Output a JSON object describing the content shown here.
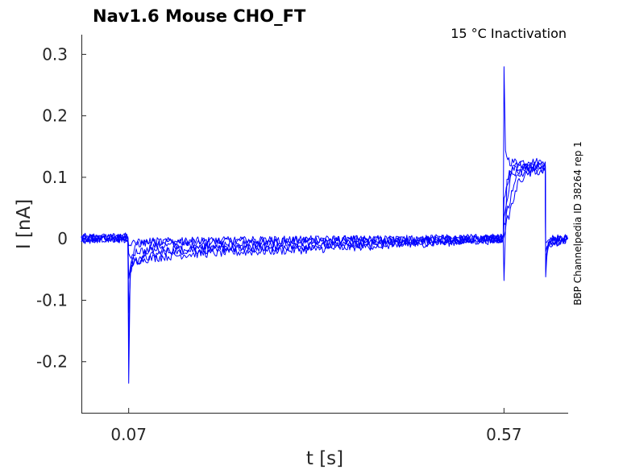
{
  "chart_data": {
    "type": "line",
    "title": "Nav1.6  Mouse  CHO_FT",
    "subtitle": "15 °C  Inactivation",
    "side_label": "BBP Channelpedia ID 38264 rep 1",
    "xlabel": "t [s]",
    "ylabel": "I [nA]",
    "xlim": [
      0.007,
      0.6555
    ],
    "ylim": [
      -0.283,
      0.332
    ],
    "x_ticks": [
      0.07,
      0.57
    ],
    "x_tick_labels": [
      "0.07",
      "0.57"
    ],
    "y_ticks": [
      0.3,
      0.2,
      0.1,
      0,
      -0.1,
      -0.2
    ],
    "y_tick_labels": [
      "0.3",
      "0.2",
      "0.1",
      "0",
      "-0.1",
      "-0.2"
    ],
    "grid": false,
    "line_color": "#0000ff",
    "protocol": {
      "prepulse_start": 0.07,
      "test_start": 0.57,
      "test_end": 0.6255
    },
    "series": [
      {
        "values": [
          [
            0.007,
            0.002
          ],
          [
            0.069,
            0.003
          ],
          [
            0.07,
            -0.235
          ],
          [
            0.072,
            -0.06
          ],
          [
            0.08,
            -0.005
          ],
          [
            0.56,
            0.001
          ],
          [
            0.569,
            0.001
          ],
          [
            0.57,
            0.28
          ],
          [
            0.572,
            0.14
          ],
          [
            0.578,
            0.125
          ],
          [
            0.625,
            0.125
          ],
          [
            0.6255,
            -0.062
          ],
          [
            0.628,
            -0.01
          ],
          [
            0.655,
            0.0
          ]
        ]
      },
      {
        "values": [
          [
            0.007,
            0.001
          ],
          [
            0.069,
            0.002
          ],
          [
            0.07,
            -0.18
          ],
          [
            0.072,
            -0.05
          ],
          [
            0.1,
            -0.012
          ],
          [
            0.3,
            -0.006
          ],
          [
            0.56,
            0.0
          ],
          [
            0.569,
            0.0
          ],
          [
            0.57,
            -0.068
          ],
          [
            0.574,
            0.1
          ],
          [
            0.585,
            0.12
          ],
          [
            0.625,
            0.12
          ],
          [
            0.6255,
            -0.05
          ],
          [
            0.628,
            -0.008
          ],
          [
            0.655,
            0.0
          ]
        ]
      },
      {
        "values": [
          [
            0.007,
            0.0
          ],
          [
            0.069,
            0.001
          ],
          [
            0.07,
            -0.12
          ],
          [
            0.073,
            -0.04
          ],
          [
            0.12,
            -0.02
          ],
          [
            0.3,
            -0.012
          ],
          [
            0.56,
            -0.001
          ],
          [
            0.569,
            -0.001
          ],
          [
            0.57,
            0.06
          ],
          [
            0.578,
            0.11
          ],
          [
            0.59,
            0.118
          ],
          [
            0.625,
            0.118
          ],
          [
            0.6255,
            -0.04
          ],
          [
            0.629,
            -0.006
          ],
          [
            0.655,
            0.0
          ]
        ]
      },
      {
        "values": [
          [
            0.007,
            -0.001
          ],
          [
            0.069,
            0.0
          ],
          [
            0.07,
            -0.06
          ],
          [
            0.075,
            -0.035
          ],
          [
            0.15,
            -0.025
          ],
          [
            0.3,
            -0.018
          ],
          [
            0.45,
            -0.008
          ],
          [
            0.56,
            -0.002
          ],
          [
            0.569,
            -0.002
          ],
          [
            0.57,
            0.04
          ],
          [
            0.58,
            0.105
          ],
          [
            0.6,
            0.115
          ],
          [
            0.625,
            0.115
          ],
          [
            0.6255,
            -0.03
          ],
          [
            0.63,
            -0.004
          ],
          [
            0.655,
            0.0
          ]
        ]
      },
      {
        "values": [
          [
            0.007,
            0.001
          ],
          [
            0.069,
            0.001
          ],
          [
            0.07,
            -0.03
          ],
          [
            0.08,
            -0.02
          ],
          [
            0.2,
            -0.015
          ],
          [
            0.4,
            -0.01
          ],
          [
            0.56,
            0.0
          ],
          [
            0.569,
            0.0
          ],
          [
            0.57,
            0.02
          ],
          [
            0.585,
            0.1
          ],
          [
            0.605,
            0.112
          ],
          [
            0.625,
            0.112
          ],
          [
            0.6255,
            -0.02
          ],
          [
            0.632,
            -0.002
          ],
          [
            0.655,
            0.0
          ]
        ]
      },
      {
        "values": [
          [
            0.007,
            0.0
          ],
          [
            0.069,
            0.0
          ],
          [
            0.07,
            -0.01
          ],
          [
            0.1,
            -0.005
          ],
          [
            0.3,
            -0.002
          ],
          [
            0.56,
            0.0
          ],
          [
            0.569,
            0.0
          ],
          [
            0.57,
            0.01
          ],
          [
            0.59,
            0.095
          ],
          [
            0.61,
            0.11
          ],
          [
            0.625,
            0.11
          ],
          [
            0.6255,
            -0.01
          ],
          [
            0.635,
            0.0
          ],
          [
            0.655,
            0.0
          ]
        ]
      }
    ]
  }
}
